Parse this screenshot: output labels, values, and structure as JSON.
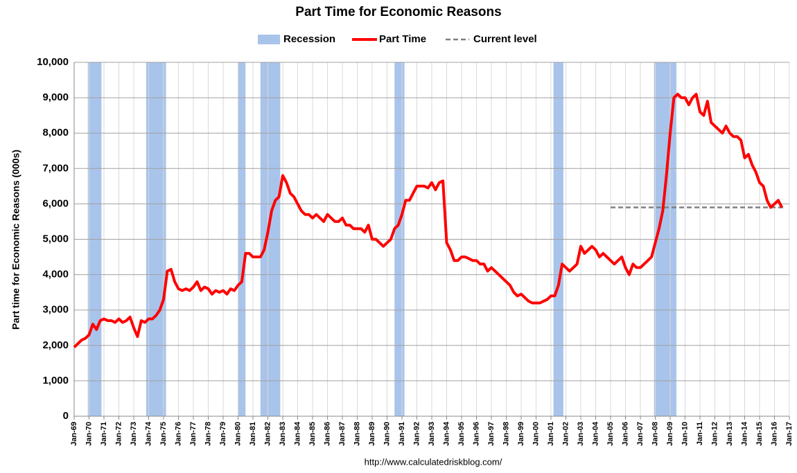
{
  "chart_data": {
    "type": "line",
    "title": "Part Time for Economic Reasons",
    "ylabel": "Part time for Economic Reasons (000s)",
    "source": "http://www.calculatedriskblog.com/",
    "recession_label": "Recession",
    "recession_color": "#a9c4eb",
    "recessions": [
      {
        "start": "1969-12",
        "end": "1970-11"
      },
      {
        "start": "1973-11",
        "end": "1975-03"
      },
      {
        "start": "1980-01",
        "end": "1980-07"
      },
      {
        "start": "1981-07",
        "end": "1982-11"
      },
      {
        "start": "1990-07",
        "end": "1991-03"
      },
      {
        "start": "2001-03",
        "end": "2001-11"
      },
      {
        "start": "2007-12",
        "end": "2009-06"
      }
    ],
    "current_level": {
      "name": "Current level",
      "value": 5900,
      "x": [
        "2005-01",
        "2016-09"
      ],
      "color": "#808080"
    },
    "x": [
      "1969-01",
      "1969-04",
      "1969-07",
      "1969-10",
      "1970-01",
      "1970-04",
      "1970-07",
      "1970-10",
      "1971-01",
      "1971-04",
      "1971-07",
      "1971-10",
      "1972-01",
      "1972-04",
      "1972-07",
      "1972-10",
      "1973-01",
      "1973-04",
      "1973-07",
      "1973-10",
      "1974-01",
      "1974-04",
      "1974-07",
      "1974-10",
      "1975-01",
      "1975-04",
      "1975-07",
      "1975-10",
      "1976-01",
      "1976-04",
      "1976-07",
      "1976-10",
      "1977-01",
      "1977-04",
      "1977-07",
      "1977-10",
      "1978-01",
      "1978-04",
      "1978-07",
      "1978-10",
      "1979-01",
      "1979-04",
      "1979-07",
      "1979-10",
      "1980-01",
      "1980-04",
      "1980-07",
      "1980-10",
      "1981-01",
      "1981-04",
      "1981-07",
      "1981-10",
      "1982-01",
      "1982-04",
      "1982-07",
      "1982-10",
      "1983-01",
      "1983-04",
      "1983-07",
      "1983-10",
      "1984-01",
      "1984-04",
      "1984-07",
      "1984-10",
      "1985-01",
      "1985-04",
      "1985-07",
      "1985-10",
      "1986-01",
      "1986-04",
      "1986-07",
      "1986-10",
      "1987-01",
      "1987-04",
      "1987-07",
      "1987-10",
      "1988-01",
      "1988-04",
      "1988-07",
      "1988-10",
      "1989-01",
      "1989-04",
      "1989-07",
      "1989-10",
      "1990-01",
      "1990-04",
      "1990-07",
      "1990-10",
      "1991-01",
      "1991-04",
      "1991-07",
      "1991-10",
      "1992-01",
      "1992-04",
      "1992-07",
      "1992-10",
      "1993-01",
      "1993-04",
      "1993-07",
      "1993-10",
      "1994-01",
      "1994-04",
      "1994-07",
      "1994-10",
      "1995-01",
      "1995-04",
      "1995-07",
      "1995-10",
      "1996-01",
      "1996-04",
      "1996-07",
      "1996-10",
      "1997-01",
      "1997-04",
      "1997-07",
      "1997-10",
      "1998-01",
      "1998-04",
      "1998-07",
      "1998-10",
      "1999-01",
      "1999-04",
      "1999-07",
      "1999-10",
      "2000-01",
      "2000-04",
      "2000-07",
      "2000-10",
      "2001-01",
      "2001-04",
      "2001-07",
      "2001-10",
      "2002-01",
      "2002-04",
      "2002-07",
      "2002-10",
      "2003-01",
      "2003-04",
      "2003-07",
      "2003-10",
      "2004-01",
      "2004-04",
      "2004-07",
      "2004-10",
      "2005-01",
      "2005-04",
      "2005-07",
      "2005-10",
      "2006-01",
      "2006-04",
      "2006-07",
      "2006-10",
      "2007-01",
      "2007-04",
      "2007-07",
      "2007-10",
      "2008-01",
      "2008-04",
      "2008-07",
      "2008-10",
      "2009-01",
      "2009-04",
      "2009-07",
      "2009-10",
      "2010-01",
      "2010-04",
      "2010-07",
      "2010-10",
      "2011-01",
      "2011-04",
      "2011-07",
      "2011-10",
      "2012-01",
      "2012-04",
      "2012-07",
      "2012-10",
      "2013-01",
      "2013-04",
      "2013-07",
      "2013-10",
      "2014-01",
      "2014-04",
      "2014-07",
      "2014-10",
      "2015-01",
      "2015-04",
      "2015-07",
      "2015-10",
      "2016-01",
      "2016-04",
      "2016-07"
    ],
    "series": [
      {
        "name": "Part Time",
        "color": "#ff0000",
        "values": [
          1950,
          2050,
          2150,
          2200,
          2300,
          2600,
          2450,
          2700,
          2750,
          2700,
          2700,
          2650,
          2750,
          2650,
          2700,
          2800,
          2500,
          2250,
          2700,
          2650,
          2750,
          2750,
          2850,
          3000,
          3300,
          4100,
          4150,
          3800,
          3600,
          3550,
          3600,
          3550,
          3650,
          3800,
          3550,
          3650,
          3600,
          3450,
          3550,
          3500,
          3550,
          3450,
          3600,
          3550,
          3700,
          3800,
          4600,
          4600,
          4500,
          4500,
          4500,
          4700,
          5200,
          5800,
          6100,
          6200,
          6800,
          6600,
          6300,
          6200,
          6000,
          5800,
          5700,
          5700,
          5600,
          5700,
          5600,
          5500,
          5700,
          5600,
          5500,
          5500,
          5600,
          5400,
          5400,
          5300,
          5300,
          5300,
          5200,
          5400,
          5000,
          5000,
          4900,
          4800,
          4900,
          5000,
          5300,
          5400,
          5700,
          6100,
          6100,
          6300,
          6500,
          6500,
          6500,
          6450,
          6600,
          6400,
          6600,
          6650,
          4900,
          4700,
          4400,
          4400,
          4500,
          4500,
          4450,
          4400,
          4400,
          4300,
          4300,
          4100,
          4200,
          4100,
          4000,
          3900,
          3800,
          3700,
          3500,
          3400,
          3450,
          3350,
          3250,
          3200,
          3200,
          3200,
          3250,
          3300,
          3400,
          3400,
          3700,
          4300,
          4200,
          4100,
          4200,
          4300,
          4800,
          4600,
          4700,
          4800,
          4700,
          4500,
          4600,
          4500,
          4400,
          4300,
          4400,
          4500,
          4200,
          4000,
          4300,
          4200,
          4200,
          4300,
          4400,
          4500,
          4900,
          5300,
          5800,
          6800,
          8000,
          9000,
          9100,
          9000,
          9000,
          8800,
          9000,
          9100,
          8600,
          8500,
          8900,
          8300,
          8200,
          8100,
          8000,
          8200,
          8000,
          7900,
          7900,
          7800,
          7300,
          7400,
          7100,
          6900,
          6600,
          6500,
          6100,
          5900,
          6000,
          6100,
          5900
        ]
      }
    ],
    "xlim": [
      "1969-01",
      "2017-01"
    ],
    "xticks": [
      {
        "value": "1969-01",
        "label": "Jan-69"
      },
      {
        "value": "1970-01",
        "label": "Jan-70"
      },
      {
        "value": "1971-01",
        "label": "Jan-71"
      },
      {
        "value": "1972-01",
        "label": "Jan-72"
      },
      {
        "value": "1973-01",
        "label": "Jan-73"
      },
      {
        "value": "1974-01",
        "label": "Jan-74"
      },
      {
        "value": "1975-01",
        "label": "Jan-75"
      },
      {
        "value": "1976-01",
        "label": "Jan-76"
      },
      {
        "value": "1977-01",
        "label": "Jan-77"
      },
      {
        "value": "1978-01",
        "label": "Jan-78"
      },
      {
        "value": "1979-01",
        "label": "Jan-79"
      },
      {
        "value": "1980-01",
        "label": "Jan-80"
      },
      {
        "value": "1981-01",
        "label": "Jan-81"
      },
      {
        "value": "1982-01",
        "label": "Jan-82"
      },
      {
        "value": "1983-01",
        "label": "Jan-83"
      },
      {
        "value": "1984-01",
        "label": "Jan-84"
      },
      {
        "value": "1985-01",
        "label": "Jan-85"
      },
      {
        "value": "1986-01",
        "label": "Jan-86"
      },
      {
        "value": "1987-01",
        "label": "Jan-87"
      },
      {
        "value": "1988-01",
        "label": "Jan-88"
      },
      {
        "value": "1989-01",
        "label": "Jan-89"
      },
      {
        "value": "1990-01",
        "label": "Jan-90"
      },
      {
        "value": "1991-01",
        "label": "Jan-91"
      },
      {
        "value": "1992-01",
        "label": "Jan-92"
      },
      {
        "value": "1993-01",
        "label": "Jan-93"
      },
      {
        "value": "1994-01",
        "label": "Jan-94"
      },
      {
        "value": "1995-01",
        "label": "Jan-95"
      },
      {
        "value": "1996-01",
        "label": "Jan-96"
      },
      {
        "value": "1997-01",
        "label": "Jan-97"
      },
      {
        "value": "1998-01",
        "label": "Jan-98"
      },
      {
        "value": "1999-01",
        "label": "Jan-99"
      },
      {
        "value": "2000-01",
        "label": "Jan-00"
      },
      {
        "value": "2001-01",
        "label": "Jan-01"
      },
      {
        "value": "2002-01",
        "label": "Jan-02"
      },
      {
        "value": "2003-01",
        "label": "Jan-03"
      },
      {
        "value": "2004-01",
        "label": "Jan-04"
      },
      {
        "value": "2005-01",
        "label": "Jan-05"
      },
      {
        "value": "2006-01",
        "label": "Jan-06"
      },
      {
        "value": "2007-01",
        "label": "Jan-07"
      },
      {
        "value": "2008-01",
        "label": "Jan-08"
      },
      {
        "value": "2009-01",
        "label": "Jan-09"
      },
      {
        "value": "2010-01",
        "label": "Jan-10"
      },
      {
        "value": "2011-01",
        "label": "Jan-11"
      },
      {
        "value": "2012-01",
        "label": "Jan-12"
      },
      {
        "value": "2013-01",
        "label": "Jan-13"
      },
      {
        "value": "2014-01",
        "label": "Jan-14"
      },
      {
        "value": "2015-01",
        "label": "Jan-15"
      },
      {
        "value": "2016-01",
        "label": "Jan-16"
      },
      {
        "value": "2017-01",
        "label": "Jan-17"
      }
    ],
    "ylim": [
      0,
      10000
    ],
    "yticks": [
      0,
      {
        "value": 1000,
        "label": "1,000"
      },
      {
        "value": 2000,
        "label": "2,000"
      },
      {
        "value": 3000,
        "label": "3,000"
      },
      {
        "value": 4000,
        "label": "4,000"
      },
      {
        "value": 5000,
        "label": "5,000"
      },
      {
        "value": 6000,
        "label": "6,000"
      },
      {
        "value": 7000,
        "label": "7,000"
      },
      {
        "value": 8000,
        "label": "8,000"
      },
      {
        "value": 9000,
        "label": "9,000"
      },
      {
        "value": 10000,
        "label": "10,000"
      }
    ],
    "grid": true
  }
}
